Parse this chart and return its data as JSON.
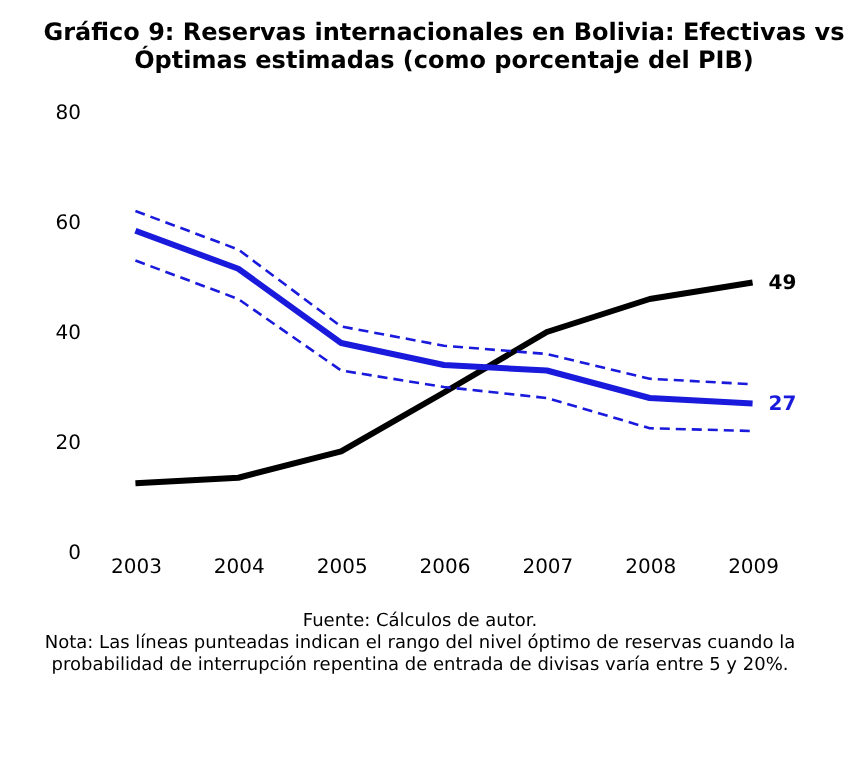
{
  "chart_data": {
    "type": "line",
    "title": [
      "Gráfico 9: Reservas internacionales en Bolivia: Efectivas vs",
      "Óptimas estimadas (como porcentaje del PIB)"
    ],
    "categories": [
      "2003",
      "2004",
      "2005",
      "2006",
      "2007",
      "2008",
      "2009"
    ],
    "series": [
      {
        "color": "#000000",
        "values": [
          12.5,
          13.5,
          18.3,
          29,
          40,
          46,
          49
        ],
        "value_labels": [
          null,
          null,
          null,
          null,
          null,
          null,
          "49"
        ]
      },
      {
        "color": "#1a1adc",
        "values": [
          58.4,
          51.5,
          38,
          34,
          33,
          28,
          27
        ],
        "value_labels": [
          null,
          null,
          null,
          null,
          null,
          null,
          "27"
        ]
      },
      {
        "color": "#1a1adc",
        "line_style": "dashed",
        "values": [
          62,
          55,
          41,
          37.5,
          36,
          31.5,
          30.5
        ]
      },
      {
        "color": "#1a1adc",
        "line_style": "dashed",
        "values": [
          53,
          46,
          33,
          30,
          28,
          22.5,
          22
        ]
      }
    ],
    "ylim": [
      0,
      80
    ],
    "yticks": [
      0,
      20,
      40,
      60,
      80
    ],
    "grid": false,
    "marker": "none",
    "line_style": "solid",
    "annotations": [
      "Fuente: Cálculos de autor.",
      "Nota: Las líneas punteadas indican el rango del nivel óptimo de reservas cuando la probabilidad de interrupción repentina de entrada de divisas varía entre 5 y 20%."
    ]
  }
}
